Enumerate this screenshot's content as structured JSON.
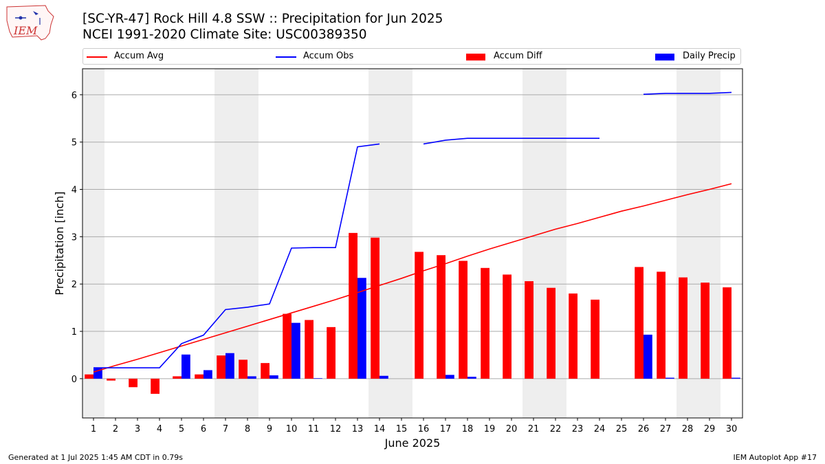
{
  "logo_text": "IEM",
  "colors": {
    "accum_avg": "#ff0000",
    "accum_obs": "#0000ff",
    "accum_diff": "#ff0000",
    "daily_precip": "#0000ff",
    "weekend_shade": "#eeeeee",
    "grid": "#aaaaaa"
  },
  "chart_data": {
    "type": "bar",
    "title": "[SC-YR-47] Rock Hill 4.8 SSW :: Precipitation for Jun 2025",
    "subtitle": "NCEI 1991-2020 Climate Site: USC00389350",
    "xlabel": "June 2025",
    "ylabel": "Precipitation [inch]",
    "ylim": [
      -0.83,
      6.55
    ],
    "yticks": [
      0,
      1,
      2,
      3,
      4,
      5,
      6
    ],
    "grid": "horizontal",
    "legend_position": "top",
    "categories": [
      "1",
      "2",
      "3",
      "4",
      "5",
      "6",
      "7",
      "8",
      "9",
      "10",
      "11",
      "12",
      "13",
      "14",
      "15",
      "16",
      "17",
      "18",
      "19",
      "20",
      "21",
      "22",
      "23",
      "24",
      "25",
      "26",
      "27",
      "28",
      "29",
      "30"
    ],
    "weekend_days": [
      1,
      7,
      8,
      14,
      15,
      21,
      22,
      28,
      29
    ],
    "series": [
      {
        "name": "Accum Avg",
        "type": "line",
        "values": [
          0.14,
          0.28,
          0.41,
          0.55,
          0.69,
          0.83,
          0.97,
          1.11,
          1.25,
          1.39,
          1.53,
          1.67,
          1.82,
          1.97,
          2.12,
          2.28,
          2.43,
          2.59,
          2.74,
          2.88,
          3.02,
          3.16,
          3.28,
          3.41,
          3.54,
          3.65,
          3.77,
          3.89,
          4.0,
          4.12
        ]
      },
      {
        "name": "Accum Obs",
        "type": "line",
        "values": [
          0.23,
          0.23,
          0.23,
          0.23,
          0.74,
          0.92,
          1.46,
          1.51,
          1.58,
          2.76,
          2.77,
          2.77,
          4.9,
          4.96,
          null,
          4.96,
          5.04,
          5.08,
          5.08,
          5.08,
          5.08,
          5.08,
          5.08,
          5.08,
          null,
          6.01,
          6.03,
          6.03,
          6.03,
          6.05
        ]
      },
      {
        "name": "Accum Diff",
        "type": "bar",
        "values": [
          0.09,
          -0.04,
          -0.18,
          -0.32,
          0.05,
          0.09,
          0.49,
          0.4,
          0.33,
          1.37,
          1.24,
          1.09,
          3.08,
          2.98,
          null,
          2.68,
          2.61,
          2.49,
          2.34,
          2.2,
          2.06,
          1.92,
          1.8,
          1.67,
          null,
          2.36,
          2.26,
          2.14,
          2.03,
          1.93
        ]
      },
      {
        "name": "Daily Precip",
        "type": "bar",
        "values": [
          0.23,
          0.0,
          0.0,
          0.0,
          0.51,
          0.18,
          0.54,
          0.05,
          0.07,
          1.18,
          0.01,
          0.0,
          2.13,
          0.06,
          0.0,
          0.0,
          0.08,
          0.04,
          0.0,
          0.0,
          0.0,
          0.0,
          0.0,
          0.0,
          0.0,
          0.93,
          0.02,
          0.0,
          0.0,
          0.02
        ]
      }
    ]
  },
  "footer": {
    "generated": "Generated at 1 Jul 2025 1:45 AM CDT in 0.79s",
    "app": "IEM Autoplot App #17"
  }
}
